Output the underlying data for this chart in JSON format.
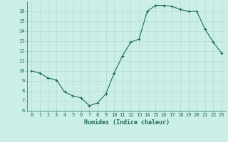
{
  "x": [
    0,
    1,
    2,
    3,
    4,
    5,
    6,
    7,
    8,
    9,
    10,
    11,
    12,
    13,
    14,
    15,
    16,
    17,
    18,
    19,
    20,
    21,
    22,
    23
  ],
  "y": [
    10.0,
    9.8,
    9.3,
    9.1,
    7.9,
    7.5,
    7.3,
    6.5,
    6.8,
    7.7,
    9.8,
    11.5,
    12.9,
    13.2,
    16.0,
    16.6,
    16.6,
    16.5,
    16.2,
    16.0,
    16.0,
    14.2,
    12.9,
    11.8
  ],
  "line_color": "#1a6b5a",
  "marker": "+",
  "marker_size": 3,
  "bg_color": "#cceee8",
  "grid_color": "#b0d8cc",
  "xlabel": "Humidex (Indice chaleur)",
  "xlim": [
    -0.5,
    23.5
  ],
  "ylim": [
    6,
    17
  ],
  "yticks": [
    6,
    7,
    8,
    9,
    10,
    11,
    12,
    13,
    14,
    15,
    16
  ],
  "xticks": [
    0,
    1,
    2,
    3,
    4,
    5,
    6,
    7,
    8,
    9,
    10,
    11,
    12,
    13,
    14,
    15,
    16,
    17,
    18,
    19,
    20,
    21,
    22,
    23
  ],
  "tick_fontsize": 5.0,
  "xlabel_fontsize": 6.0,
  "linewidth": 0.8,
  "markeredgewidth": 0.8
}
